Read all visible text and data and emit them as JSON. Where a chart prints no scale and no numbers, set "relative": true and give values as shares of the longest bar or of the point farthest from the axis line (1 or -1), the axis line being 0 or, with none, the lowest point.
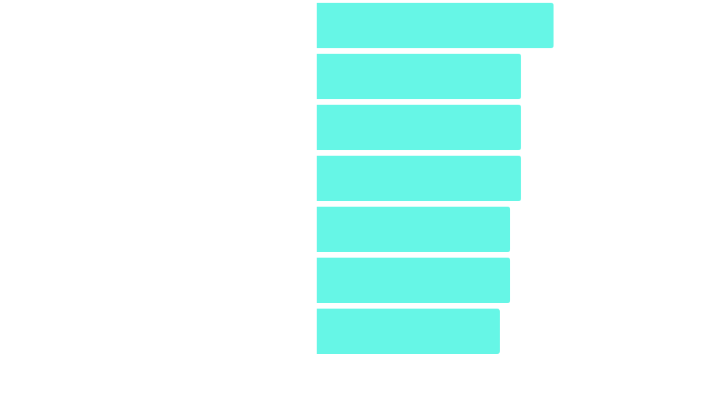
{
  "chart_data": {
    "type": "bar",
    "orientation": "horizontal",
    "relative": true,
    "categories": [
      null,
      null,
      null,
      null,
      null,
      null,
      null
    ],
    "values": [
      1,
      0.863,
      0.863,
      0.863,
      0.817,
      0.817,
      0.773
    ],
    "color": "#66f6e6"
  }
}
